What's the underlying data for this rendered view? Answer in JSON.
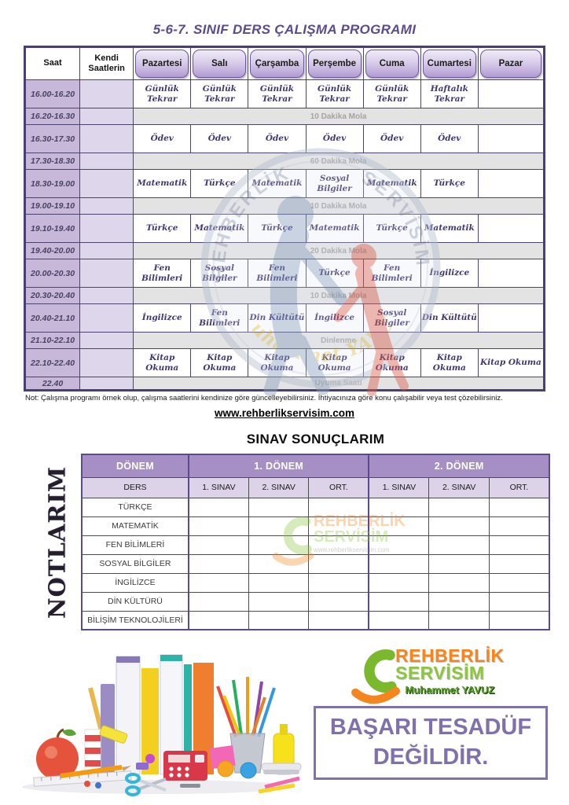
{
  "title": "5-6-7. SINIF DERS ÇALIŞMA PROGRAMI",
  "schedule": {
    "headers": {
      "time": "Saat",
      "own": "Kendi Saatlerin"
    },
    "days": [
      "Pazartesi",
      "Salı",
      "Çarşamba",
      "Perşembe",
      "Cuma",
      "Cumartesi",
      "Pazar"
    ],
    "rows": [
      {
        "time": "16.00-16.20",
        "type": "subjects",
        "cells": [
          "Günlük Tekrar",
          "Günlük Tekrar",
          "Günlük Tekrar",
          "Günlük Tekrar",
          "Günlük Tekrar",
          "Haftalık Tekrar",
          ""
        ]
      },
      {
        "time": "16.20-16.30",
        "type": "break",
        "label": "10 Dakika Mola"
      },
      {
        "time": "16.30-17.30",
        "type": "subjects",
        "cells": [
          "Ödev",
          "Ödev",
          "Ödev",
          "Ödev",
          "Ödev",
          "Ödev",
          ""
        ]
      },
      {
        "time": "17.30-18.30",
        "type": "break",
        "label": "60 Dakika Mola"
      },
      {
        "time": "18.30-19.00",
        "type": "subjects",
        "cells": [
          "Matematik",
          "Türkçe",
          "Matematik",
          "Sosyal Bilgiler",
          "Matematik",
          "Türkçe",
          ""
        ]
      },
      {
        "time": "19.00-19.10",
        "type": "break",
        "label": "10 Dakika Mola"
      },
      {
        "time": "19.10-19.40",
        "type": "subjects",
        "cells": [
          "Türkçe",
          "Matematik",
          "Türkçe",
          "Matematik",
          "Türkçe",
          "Matematik",
          ""
        ]
      },
      {
        "time": "19.40-20.00",
        "type": "break",
        "label": "20 Dakika Mola"
      },
      {
        "time": "20.00-20.30",
        "type": "subjects",
        "cells": [
          "Fen Bilimleri",
          "Sosyal Bilgiler",
          "Fen Bilimleri",
          "Türkçe",
          "Fen Bilimleri",
          "İngilizce",
          ""
        ]
      },
      {
        "time": "20.30-20.40",
        "type": "break",
        "label": "10 Dakika Mola"
      },
      {
        "time": "20.40-21.10",
        "type": "subjects",
        "cells": [
          "İngilizce",
          "Fen Bilimleri",
          "Din Kültütü",
          "İngilizce",
          "Sosyal Bilgiler",
          "Din Kültütü",
          ""
        ]
      },
      {
        "time": "21.10-22.10",
        "type": "break",
        "label": "Dinlenme"
      },
      {
        "time": "22.10-22.40",
        "type": "subjects",
        "cells": [
          "Kitap Okuma",
          "Kitap Okuma",
          "Kitap Okuma",
          "Kitap Okuma",
          "Kitap Okuma",
          "Kitap Okuma",
          "Kitap Okuma"
        ]
      },
      {
        "time": "22.40",
        "type": "break",
        "label": "Uyuma Saati"
      }
    ],
    "note": "Not: Çalışma programı örnek olup, çalışma saatlerini kendinize göre güncelleyebilirsiniz. İhtiyacınıza göre konu çalışabilir veya test çözebilirsiniz.",
    "website": "www.rehberlikservisim.com"
  },
  "watermark": {
    "arc_top_left": "REHBERLİK",
    "arc_top_right": "SERVİSİM",
    "arc_bottom": "Muhammet YAVUZ"
  },
  "exam": {
    "title": "SINAV SONUÇLARIM",
    "side_label": "NOTLARIM",
    "term_header": "DÖNEM",
    "term1": "1. DÖNEM",
    "term2": "2. DÖNEM",
    "course_header": "DERS",
    "sub_headers": [
      "1. SINAV",
      "2. SINAV",
      "ORT."
    ],
    "courses": [
      "TÜRKÇE",
      "MATEMATİK",
      "FEN BİLİMLERİ",
      "SOSYAL BİLGİLER",
      "İNGİLİZCE",
      "DİN KÜLTÜRÜ",
      "BİLİŞİM TEKNOLOJİLERİ"
    ]
  },
  "brand": {
    "line1": "REHBERLİK",
    "line2": "SERVİSİM",
    "author": "Muhammet YAVUZ",
    "url": "www.rehberlikservisim.com"
  },
  "quote": {
    "line1": "BAŞARI TESADÜF",
    "line2": "DEĞİLDİR."
  },
  "colors": {
    "title_purple": "#5b4b8e",
    "button_purple": "#b29bd1",
    "time_col": "#c7b8da",
    "own_col": "#ded7eb",
    "break_gray": "#e4e3e4",
    "subject_text": "#423672",
    "exam_header": "#a58fc4",
    "exam_subheader": "#dcd3e9",
    "brand_orange": "#f5861f",
    "brand_green": "#8cc63e",
    "quote_purple": "#8071ab"
  }
}
